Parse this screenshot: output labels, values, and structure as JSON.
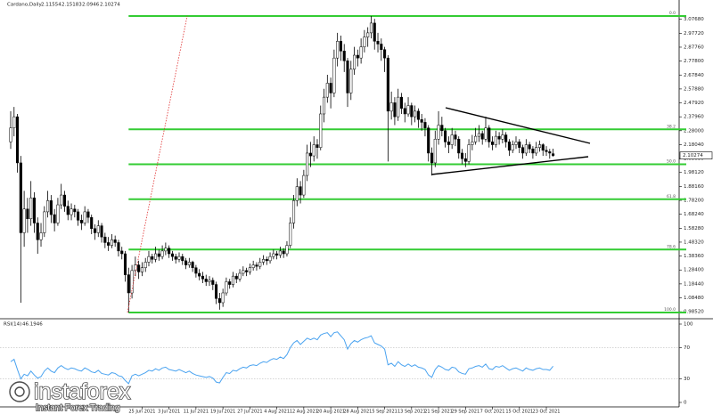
{
  "chart_data": {
    "type": "candlestick",
    "title": "Cardano,Daily",
    "categories": [
      null,
      null,
      null,
      null,
      null,
      null,
      null,
      null,
      null,
      null,
      null,
      null,
      null,
      null,
      null,
      null,
      null,
      null,
      null,
      null,
      null,
      null,
      null,
      null,
      null,
      null,
      null,
      null,
      null,
      null,
      null,
      null,
      null,
      null,
      null,
      null,
      null,
      null,
      null,
      "25 Jun 2021",
      null,
      null,
      null,
      null,
      null,
      null,
      null,
      "3 Jul 2021",
      null,
      null,
      null,
      null,
      null,
      null,
      null,
      "11 Jul 2021",
      null,
      null,
      null,
      null,
      null,
      null,
      null,
      "19 Jul 2021",
      null,
      null,
      null,
      null,
      null,
      null,
      null,
      "27 Jul 2021",
      null,
      null,
      null,
      null,
      null,
      null,
      null,
      "4 Aug 2021",
      null,
      null,
      null,
      null,
      null,
      null,
      null,
      "12 Aug 2021",
      null,
      null,
      null,
      null,
      null,
      null,
      null,
      "20 Aug 2021",
      null,
      null,
      null,
      null,
      null,
      null,
      null,
      "28 Aug 2021",
      null,
      null,
      null,
      null,
      null,
      null,
      null,
      "5 Sep 2021",
      null,
      null,
      null,
      null,
      null,
      null,
      null,
      "13 Sep 2021",
      null,
      null,
      null,
      null,
      null,
      null,
      null,
      "21 Sep 2021",
      null,
      null,
      null,
      null,
      null,
      null,
      null,
      "29 Sep 2021",
      null,
      null,
      null,
      null,
      null,
      null,
      null,
      "7 Oct 2021",
      null,
      null,
      null,
      null,
      null,
      null,
      null,
      "15 Oct 2021",
      null,
      null,
      null,
      null,
      null,
      null,
      null,
      "23 Oct 2021",
      null,
      null
    ],
    "ohlc": [
      [
        2.2,
        2.42,
        2.15,
        2.3
      ],
      [
        2.3,
        2.45,
        2.24,
        2.38
      ],
      [
        2.38,
        2.4,
        1.98,
        2.05
      ],
      [
        2.05,
        2.1,
        1.05,
        1.55
      ],
      [
        1.55,
        1.85,
        1.45,
        1.72
      ],
      [
        1.72,
        1.8,
        1.55,
        1.65
      ],
      [
        1.65,
        1.92,
        1.6,
        1.8
      ],
      [
        1.8,
        1.84,
        1.55,
        1.62
      ],
      [
        1.62,
        1.66,
        1.4,
        1.5
      ],
      [
        1.5,
        1.62,
        1.45,
        1.55
      ],
      [
        1.55,
        1.74,
        1.52,
        1.7
      ],
      [
        1.7,
        1.85,
        1.66,
        1.78
      ],
      [
        1.78,
        1.82,
        1.62,
        1.68
      ],
      [
        1.68,
        1.72,
        1.56,
        1.62
      ],
      [
        1.62,
        1.8,
        1.6,
        1.75
      ],
      [
        1.75,
        1.9,
        1.72,
        1.82
      ],
      [
        1.82,
        1.85,
        1.7,
        1.74
      ],
      [
        1.74,
        1.78,
        1.64,
        1.68
      ],
      [
        1.68,
        1.76,
        1.64,
        1.72
      ],
      [
        1.72,
        1.75,
        1.66,
        1.7
      ],
      [
        1.7,
        1.72,
        1.6,
        1.64
      ],
      [
        1.64,
        1.68,
        1.57,
        1.62
      ],
      [
        1.62,
        1.74,
        1.6,
        1.7
      ],
      [
        1.7,
        1.72,
        1.62,
        1.66
      ],
      [
        1.66,
        1.68,
        1.54,
        1.58
      ],
      [
        1.58,
        1.61,
        1.5,
        1.55
      ],
      [
        1.55,
        1.64,
        1.52,
        1.6
      ],
      [
        1.6,
        1.62,
        1.48,
        1.52
      ],
      [
        1.52,
        1.55,
        1.44,
        1.48
      ],
      [
        1.48,
        1.52,
        1.42,
        1.46
      ],
      [
        1.46,
        1.54,
        1.44,
        1.5
      ],
      [
        1.5,
        1.53,
        1.45,
        1.48
      ],
      [
        1.48,
        1.5,
        1.38,
        1.42
      ],
      [
        1.42,
        1.45,
        1.36,
        1.4
      ],
      [
        1.4,
        1.42,
        1.2,
        1.25
      ],
      [
        1.25,
        1.3,
        0.98,
        1.12
      ],
      [
        1.12,
        1.32,
        1.08,
        1.28
      ],
      [
        1.28,
        1.38,
        1.24,
        1.32
      ],
      [
        1.32,
        1.35,
        1.22,
        1.27
      ],
      [
        1.27,
        1.34,
        1.24,
        1.3
      ],
      [
        1.3,
        1.37,
        1.27,
        1.34
      ],
      [
        1.34,
        1.42,
        1.31,
        1.38
      ],
      [
        1.38,
        1.4,
        1.33,
        1.36
      ],
      [
        1.36,
        1.45,
        1.34,
        1.4
      ],
      [
        1.4,
        1.43,
        1.35,
        1.38
      ],
      [
        1.38,
        1.46,
        1.36,
        1.42
      ],
      [
        1.42,
        1.48,
        1.39,
        1.44
      ],
      [
        1.44,
        1.46,
        1.37,
        1.4
      ],
      [
        1.4,
        1.42,
        1.35,
        1.38
      ],
      [
        1.38,
        1.4,
        1.33,
        1.36
      ],
      [
        1.36,
        1.41,
        1.34,
        1.38
      ],
      [
        1.38,
        1.4,
        1.32,
        1.35
      ],
      [
        1.35,
        1.37,
        1.29,
        1.32
      ],
      [
        1.32,
        1.37,
        1.3,
        1.34
      ],
      [
        1.34,
        1.35,
        1.27,
        1.3
      ],
      [
        1.3,
        1.32,
        1.23,
        1.26
      ],
      [
        1.26,
        1.29,
        1.21,
        1.24
      ],
      [
        1.24,
        1.27,
        1.19,
        1.22
      ],
      [
        1.22,
        1.25,
        1.17,
        1.2
      ],
      [
        1.2,
        1.24,
        1.17,
        1.21
      ],
      [
        1.21,
        1.23,
        1.14,
        1.18
      ],
      [
        1.18,
        1.2,
        1.04,
        1.08
      ],
      [
        1.08,
        1.12,
        1.0,
        1.05
      ],
      [
        1.05,
        1.15,
        1.02,
        1.12
      ],
      [
        1.12,
        1.23,
        1.1,
        1.2
      ],
      [
        1.2,
        1.22,
        1.15,
        1.18
      ],
      [
        1.18,
        1.27,
        1.16,
        1.24
      ],
      [
        1.24,
        1.26,
        1.19,
        1.22
      ],
      [
        1.22,
        1.29,
        1.2,
        1.26
      ],
      [
        1.26,
        1.31,
        1.24,
        1.28
      ],
      [
        1.28,
        1.3,
        1.24,
        1.27
      ],
      [
        1.27,
        1.33,
        1.25,
        1.3
      ],
      [
        1.3,
        1.35,
        1.28,
        1.32
      ],
      [
        1.32,
        1.34,
        1.28,
        1.31
      ],
      [
        1.31,
        1.37,
        1.29,
        1.34
      ],
      [
        1.34,
        1.39,
        1.32,
        1.36
      ],
      [
        1.36,
        1.38,
        1.32,
        1.35
      ],
      [
        1.35,
        1.41,
        1.33,
        1.38
      ],
      [
        1.38,
        1.43,
        1.36,
        1.4
      ],
      [
        1.4,
        1.42,
        1.36,
        1.39
      ],
      [
        1.39,
        1.45,
        1.37,
        1.42
      ],
      [
        1.42,
        1.44,
        1.37,
        1.4
      ],
      [
        1.4,
        1.49,
        1.38,
        1.46
      ],
      [
        1.46,
        1.66,
        1.44,
        1.62
      ],
      [
        1.62,
        1.82,
        1.58,
        1.78
      ],
      [
        1.78,
        1.94,
        1.74,
        1.88
      ],
      [
        1.88,
        1.92,
        1.76,
        1.82
      ],
      [
        1.82,
        2.0,
        1.8,
        1.96
      ],
      [
        1.96,
        2.18,
        1.92,
        2.12
      ],
      [
        2.12,
        2.2,
        2.02,
        2.1
      ],
      [
        2.1,
        2.24,
        2.06,
        2.18
      ],
      [
        2.18,
        2.22,
        2.08,
        2.16
      ],
      [
        2.16,
        2.46,
        2.14,
        2.4
      ],
      [
        2.4,
        2.58,
        2.34,
        2.52
      ],
      [
        2.52,
        2.68,
        2.48,
        2.62
      ],
      [
        2.62,
        2.66,
        2.44,
        2.55
      ],
      [
        2.55,
        2.86,
        2.52,
        2.8
      ],
      [
        2.8,
        2.98,
        2.74,
        2.92
      ],
      [
        2.92,
        2.96,
        2.78,
        2.85
      ],
      [
        2.85,
        2.9,
        2.7,
        2.78
      ],
      [
        2.78,
        2.8,
        2.45,
        2.55
      ],
      [
        2.55,
        2.78,
        2.5,
        2.72
      ],
      [
        2.72,
        2.88,
        2.68,
        2.82
      ],
      [
        2.82,
        2.86,
        2.74,
        2.8
      ],
      [
        2.8,
        2.94,
        2.76,
        2.88
      ],
      [
        2.88,
        3.0,
        2.84,
        2.95
      ],
      [
        2.95,
        3.02,
        2.88,
        2.98
      ],
      [
        2.98,
        3.1,
        2.94,
        3.05
      ],
      [
        3.05,
        3.08,
        2.86,
        2.92
      ],
      [
        2.92,
        2.98,
        2.84,
        2.9
      ],
      [
        2.9,
        2.94,
        2.78,
        2.86
      ],
      [
        2.86,
        2.88,
        2.7,
        2.8
      ],
      [
        2.8,
        2.82,
        2.06,
        2.42
      ],
      [
        2.42,
        2.56,
        2.36,
        2.48
      ],
      [
        2.48,
        2.52,
        2.32,
        2.38
      ],
      [
        2.38,
        2.58,
        2.35,
        2.52
      ],
      [
        2.52,
        2.55,
        2.4,
        2.44
      ],
      [
        2.44,
        2.48,
        2.34,
        2.4
      ],
      [
        2.4,
        2.52,
        2.38,
        2.46
      ],
      [
        2.46,
        2.48,
        2.32,
        2.38
      ],
      [
        2.38,
        2.46,
        2.34,
        2.42
      ],
      [
        2.42,
        2.44,
        2.3,
        2.36
      ],
      [
        2.36,
        2.4,
        2.28,
        2.34
      ],
      [
        2.34,
        2.37,
        2.24,
        2.3
      ],
      [
        2.3,
        2.32,
        2.06,
        2.12
      ],
      [
        2.12,
        2.16,
        1.96,
        2.05
      ],
      [
        2.05,
        2.28,
        2.02,
        2.22
      ],
      [
        2.22,
        2.42,
        2.18,
        2.32
      ],
      [
        2.32,
        2.38,
        2.24,
        2.28
      ],
      [
        2.28,
        2.3,
        2.16,
        2.2
      ],
      [
        2.2,
        2.24,
        2.12,
        2.18
      ],
      [
        2.18,
        2.3,
        2.15,
        2.25
      ],
      [
        2.25,
        2.28,
        2.17,
        2.22
      ],
      [
        2.22,
        2.24,
        2.08,
        2.12
      ],
      [
        2.12,
        2.15,
        2.04,
        2.08
      ],
      [
        2.08,
        2.12,
        2.02,
        2.06
      ],
      [
        2.06,
        2.22,
        2.04,
        2.18
      ],
      [
        2.18,
        2.25,
        2.14,
        2.2
      ],
      [
        2.2,
        2.3,
        2.18,
        2.24
      ],
      [
        2.24,
        2.32,
        2.2,
        2.26
      ],
      [
        2.26,
        2.28,
        2.18,
        2.22
      ],
      [
        2.22,
        2.38,
        2.2,
        2.3
      ],
      [
        2.3,
        2.32,
        2.16,
        2.2
      ],
      [
        2.2,
        2.24,
        2.14,
        2.18
      ],
      [
        2.18,
        2.28,
        2.16,
        2.24
      ],
      [
        2.24,
        2.27,
        2.18,
        2.22
      ],
      [
        2.22,
        2.29,
        2.19,
        2.25
      ],
      [
        2.25,
        2.27,
        2.16,
        2.2
      ],
      [
        2.2,
        2.22,
        2.1,
        2.14
      ],
      [
        2.14,
        2.21,
        2.12,
        2.18
      ],
      [
        2.18,
        2.24,
        2.15,
        2.2
      ],
      [
        2.2,
        2.22,
        2.12,
        2.16
      ],
      [
        2.16,
        2.18,
        2.08,
        2.12
      ],
      [
        2.12,
        2.22,
        2.1,
        2.18
      ],
      [
        2.18,
        2.2,
        2.12,
        2.15
      ],
      [
        2.15,
        2.17,
        2.08,
        2.12
      ],
      [
        2.12,
        2.2,
        2.1,
        2.16
      ],
      [
        2.16,
        2.21,
        2.13,
        2.18
      ],
      [
        2.18,
        2.19,
        2.1,
        2.14
      ],
      [
        2.14,
        2.17,
        2.1,
        2.13
      ],
      [
        2.13,
        2.15,
        2.08,
        2.12
      ],
      [
        2.11554,
        2.15183,
        2.0946,
        2.10274
      ]
    ],
    "up_color": "#ffffff",
    "down_color": "#000000",
    "ylim": [
      0.948,
      3.164
    ],
    "yticks": [
      {
        "value": 0.9852,
        "label": "0.98520"
      },
      {
        "value": 1.0848,
        "label": "1.08480"
      },
      {
        "value": 1.1844,
        "label": "1.18440"
      },
      {
        "value": 1.284,
        "label": "1.28400"
      },
      {
        "value": 1.3836,
        "label": "1.38360"
      },
      {
        "value": 1.4832,
        "label": "1.48320"
      },
      {
        "value": 1.5828,
        "label": "1.58280"
      },
      {
        "value": 1.6824,
        "label": "1.68240"
      },
      {
        "value": 1.782,
        "label": "1.78200"
      },
      {
        "value": 1.8816,
        "label": "1.88160"
      },
      {
        "value": 1.9812,
        "label": "1.98120"
      },
      {
        "value": 2.0808,
        "label": "2.08080"
      },
      {
        "value": 2.1804,
        "label": "2.18040"
      },
      {
        "value": 2.28,
        "label": "2.28000"
      },
      {
        "value": 2.3796,
        "label": "2.37960"
      },
      {
        "value": 2.4792,
        "label": "2.47920"
      },
      {
        "value": 2.5788,
        "label": "2.57880"
      },
      {
        "value": 2.6784,
        "label": "2.67840"
      },
      {
        "value": 2.778,
        "label": "2.77800"
      },
      {
        "value": 2.8776,
        "label": "2.87760"
      },
      {
        "value": 2.9772,
        "label": "2.97720"
      },
      {
        "value": 3.0768,
        "label": "3.07680"
      }
    ],
    "fib": {
      "color": "#33cc33",
      "levels": [
        {
          "level": {
            "value": 0,
            "label": "0.0"
          },
          "price": 3.1
        },
        {
          "level": {
            "value": 38.2,
            "label": "38.2"
          },
          "price": 2.29
        },
        {
          "level": {
            "value": 50,
            "label": "50.0"
          },
          "price": 2.04
        },
        {
          "level": {
            "value": 61.8,
            "label": "61.8"
          },
          "price": 1.79
        },
        {
          "level": {
            "value": 78.6,
            "label": "78.6"
          },
          "price": 1.43
        },
        {
          "level": {
            "value": 100,
            "label": "100.0"
          },
          "price": 0.98
        }
      ]
    },
    "indicator": {
      "name": "RSI(14)",
      "color": "#4aa3f0",
      "ylim": [
        0,
        100
      ],
      "yticks": [
        0,
        30,
        70,
        100
      ],
      "values": [
        52,
        55,
        42,
        30,
        36,
        34,
        40,
        35,
        31,
        33,
        40,
        44,
        40,
        38,
        44,
        47,
        44,
        42,
        44,
        43,
        41,
        40,
        44,
        42,
        39,
        38,
        41,
        37,
        36,
        35,
        38,
        37,
        34,
        33,
        28,
        24,
        34,
        36,
        34,
        36,
        38,
        41,
        40,
        43,
        41,
        44,
        45,
        42,
        41,
        40,
        42,
        40,
        38,
        40,
        37,
        35,
        34,
        33,
        32,
        33,
        31,
        26,
        25,
        32,
        38,
        37,
        41,
        40,
        43,
        45,
        44,
        47,
        48,
        47,
        50,
        52,
        51,
        54,
        56,
        55,
        58,
        56,
        61,
        70,
        76,
        79,
        74,
        78,
        82,
        80,
        82,
        80,
        86,
        88,
        89,
        84,
        89,
        90,
        85,
        80,
        68,
        75,
        79,
        77,
        80,
        82,
        83,
        85,
        76,
        74,
        72,
        68,
        48,
        50,
        46,
        52,
        48,
        46,
        49,
        46,
        48,
        45,
        44,
        42,
        35,
        32,
        42,
        47,
        45,
        42,
        41,
        45,
        44,
        39,
        37,
        36,
        43,
        44,
        46,
        47,
        45,
        49,
        43,
        42,
        46,
        45,
        47,
        44,
        41,
        43,
        44,
        42,
        40,
        44,
        42,
        41,
        43,
        44,
        42,
        42,
        41,
        46.1946
      ]
    }
  },
  "watermark": {
    "brand": "instaforex",
    "tagline": "Instant Forex Trading"
  }
}
